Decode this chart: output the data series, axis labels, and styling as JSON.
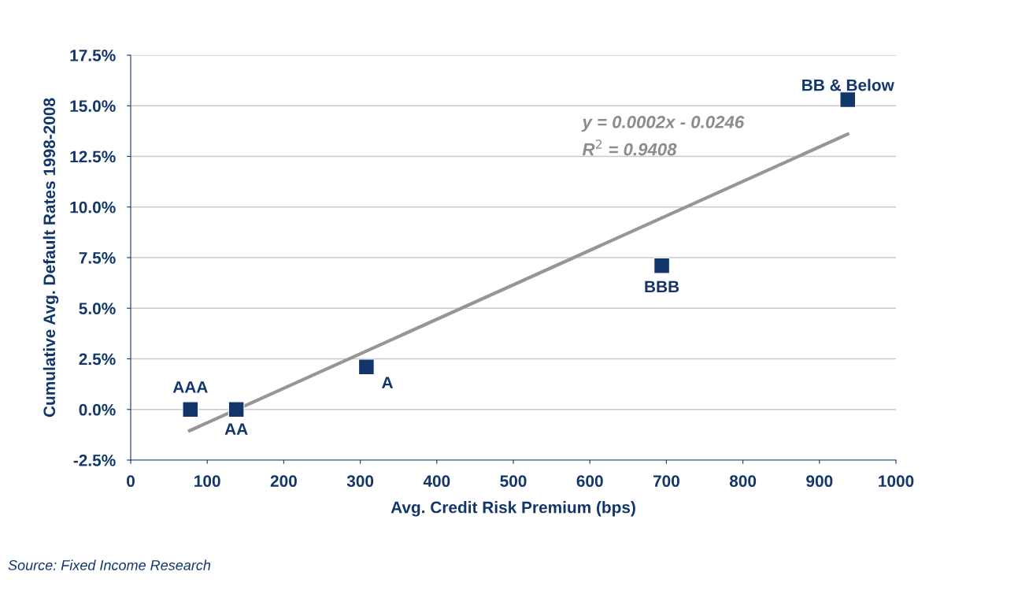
{
  "chart_data": {
    "type": "scatter",
    "xlabel": "Avg. Credit Risk Premium (bps)",
    "ylabel": "Cumulative Avg. Default Rates 1998-2008",
    "series": [
      {
        "color": "#12366b",
        "marker": "square",
        "x": [
          78,
          138,
          308,
          694,
          937
        ],
        "values": [
          0,
          0,
          2.1,
          7.1,
          15.3
        ]
      },
      {
        "type": "line",
        "color": "#969696",
        "marker": "none",
        "line_style": "solid",
        "x": [
          77,
          937
        ],
        "values": [
          -1.05,
          13.6
        ]
      }
    ],
    "annotations": [
      {
        "text": "AAA",
        "x": 78,
        "y": 0
      },
      {
        "text": "AA",
        "x": 138,
        "y": 0
      },
      {
        "text": "A",
        "x": 308,
        "y": 2.1
      },
      {
        "text": "BBB",
        "x": 694,
        "y": 7.1
      },
      {
        "text": "BB & Below",
        "x": 937,
        "y": 15.3
      },
      "y = 0.0002x - 0.0246",
      "R$^{2}$ = 0.9408",
      "Source: Fixed Income Research"
    ],
    "xlim": [
      0,
      1000
    ],
    "xticks": [
      0,
      100,
      200,
      300,
      400,
      500,
      600,
      700,
      800,
      900,
      1000
    ],
    "ylim": [
      -2.5,
      17.5
    ],
    "yticks": [
      {
        "value": -2.5,
        "label": "-2.5%"
      },
      {
        "value": 0,
        "label": "0.0%"
      },
      {
        "value": 2.5,
        "label": "2.5%"
      },
      {
        "value": 5,
        "label": "5.0%"
      },
      {
        "value": 7.5,
        "label": "7.5%"
      },
      {
        "value": 10,
        "label": "10.0%"
      },
      {
        "value": 12.5,
        "label": "12.5%"
      },
      {
        "value": 15,
        "label": "15.0%"
      },
      {
        "value": 17.5,
        "label": "17.5%"
      }
    ],
    "grid": "y",
    "legend": false
  }
}
